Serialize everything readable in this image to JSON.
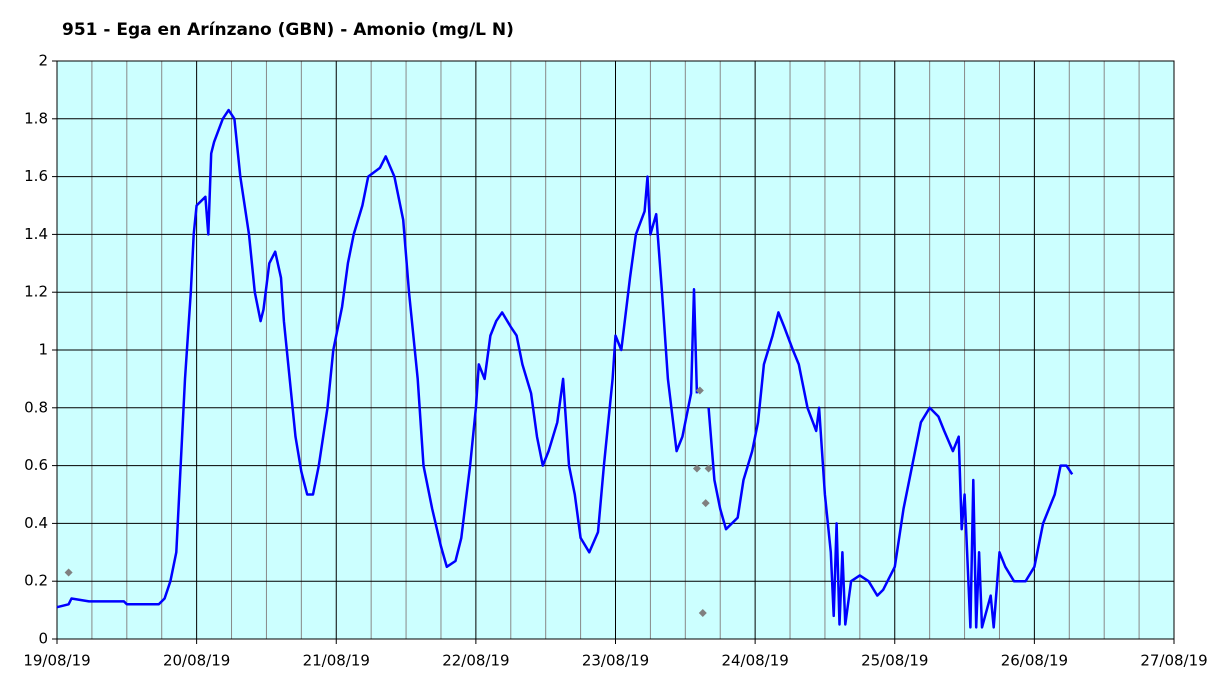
{
  "chart_data": {
    "type": "line",
    "title": "951 - Ega en Arínzano (GBN) - Amonio (mg/L N)",
    "xlim": [
      "2019-08-19 00:00",
      "2019-08-27 00:00"
    ],
    "xticks": [
      {
        "value": "2019-08-19 00:00",
        "label": "19/08/19"
      },
      {
        "value": "2019-08-20 00:00",
        "label": "20/08/19"
      },
      {
        "value": "2019-08-21 00:00",
        "label": "21/08/19"
      },
      {
        "value": "2019-08-22 00:00",
        "label": "22/08/19"
      },
      {
        "value": "2019-08-23 00:00",
        "label": "23/08/19"
      },
      {
        "value": "2019-08-24 00:00",
        "label": "24/08/19"
      },
      {
        "value": "2019-08-25 00:00",
        "label": "25/08/19"
      },
      {
        "value": "2019-08-26 00:00",
        "label": "26/08/19"
      },
      {
        "value": "2019-08-27 00:00",
        "label": "27/08/19"
      }
    ],
    "xminor": 4,
    "ylim": [
      0,
      2
    ],
    "yticks": [
      0,
      0.2,
      0.4,
      0.6,
      0.8,
      1,
      1.2,
      1.4,
      1.6,
      1.8,
      2
    ],
    "grid": true,
    "background": "#ccffff",
    "series": [
      {
        "mode": "line",
        "color": "#0000ff",
        "x": [
          "2019-08-19 00:00",
          "2019-08-19 02:00",
          "2019-08-19 02:30",
          "2019-08-19 05:30",
          "2019-08-19 11:30",
          "2019-08-19 12:00",
          "2019-08-19 17:30",
          "2019-08-19 18:30",
          "2019-08-19 19:30",
          "2019-08-19 20:30",
          "2019-08-19 21:00",
          "2019-08-19 22:00",
          "2019-08-19 23:00",
          "2019-08-19 23:30",
          "2019-08-20 00:00",
          "2019-08-20 01:30",
          "2019-08-20 02:00",
          "2019-08-20 02:30",
          "2019-08-20 03:00",
          "2019-08-20 04:30",
          "2019-08-20 05:30",
          "2019-08-20 06:30",
          "2019-08-20 07:30",
          "2019-08-20 09:00",
          "2019-08-20 10:00",
          "2019-08-20 11:00",
          "2019-08-20 11:30",
          "2019-08-20 12:30",
          "2019-08-20 13:30",
          "2019-08-20 14:30",
          "2019-08-20 15:00",
          "2019-08-20 16:00",
          "2019-08-20 17:00",
          "2019-08-20 18:00",
          "2019-08-20 19:00",
          "2019-08-20 20:00",
          "2019-08-20 21:00",
          "2019-08-20 22:30",
          "2019-08-20 23:30",
          "2019-08-21 01:00",
          "2019-08-21 02:00",
          "2019-08-21 03:00",
          "2019-08-21 04:30",
          "2019-08-21 05:30",
          "2019-08-21 07:30",
          "2019-08-21 08:30",
          "2019-08-21 10:00",
          "2019-08-21 11:30",
          "2019-08-21 12:30",
          "2019-08-21 14:00",
          "2019-08-21 15:00",
          "2019-08-21 16:30",
          "2019-08-21 18:00",
          "2019-08-21 19:00",
          "2019-08-21 20:30",
          "2019-08-21 21:30",
          "2019-08-21 23:00",
          "2019-08-22 00:00",
          "2019-08-22 00:30",
          "2019-08-22 01:30",
          "2019-08-22 02:30",
          "2019-08-22 03:30",
          "2019-08-22 04:30",
          "2019-08-22 06:00",
          "2019-08-22 07:00",
          "2019-08-22 08:00",
          "2019-08-22 09:30",
          "2019-08-22 10:30",
          "2019-08-22 11:30",
          "2019-08-22 12:30",
          "2019-08-22 14:00",
          "2019-08-22 15:00",
          "2019-08-22 16:00",
          "2019-08-22 17:00",
          "2019-08-22 18:00",
          "2019-08-22 19:30",
          "2019-08-22 21:00",
          "2019-08-22 22:00",
          "2019-08-22 23:30",
          "2019-08-23 00:00",
          "2019-08-23 01:00",
          "2019-08-23 02:30",
          "2019-08-23 03:30",
          "2019-08-23 05:00",
          "2019-08-23 05:30",
          "2019-08-23 06:00",
          "2019-08-23 07:00",
          "2019-08-23 08:00",
          "2019-08-23 09:00",
          "2019-08-23 10:30",
          "2019-08-23 11:30",
          "2019-08-23 12:30",
          "2019-08-23 13:00",
          "2019-08-23 13:30",
          "2019-08-23 14:00",
          "2019-08-23 15:00",
          "2019-08-23 16:00",
          "2019-08-23 17:00",
          "2019-08-23 18:00",
          "2019-08-23 19:00",
          "2019-08-23 20:00",
          "2019-08-23 21:00",
          "2019-08-23 22:00",
          "2019-08-23 23:30",
          "2019-08-24 00:30",
          "2019-08-24 01:30",
          "2019-08-24 03:00",
          "2019-08-24 04:00",
          "2019-08-24 05:00",
          "2019-08-24 06:30",
          "2019-08-24 07:30",
          "2019-08-24 09:00",
          "2019-08-24 10:30",
          "2019-08-24 11:00",
          "2019-08-24 12:00",
          "2019-08-24 13:00",
          "2019-08-24 13:30",
          "2019-08-24 14:00",
          "2019-08-24 14:30",
          "2019-08-24 15:00",
          "2019-08-24 15:30",
          "2019-08-24 16:30",
          "2019-08-24 18:00",
          "2019-08-24 19:30",
          "2019-08-24 21:00",
          "2019-08-24 22:00",
          "2019-08-25 00:00",
          "2019-08-25 01:30",
          "2019-08-25 03:30",
          "2019-08-25 04:30",
          "2019-08-25 06:00",
          "2019-08-25 07:30",
          "2019-08-25 08:30",
          "2019-08-25 10:00",
          "2019-08-25 11:00",
          "2019-08-25 11:30",
          "2019-08-25 12:00",
          "2019-08-25 13:00",
          "2019-08-25 13:30",
          "2019-08-25 14:00",
          "2019-08-25 14:30",
          "2019-08-25 15:00",
          "2019-08-25 16:30",
          "2019-08-25 17:00",
          "2019-08-25 18:00",
          "2019-08-25 19:00",
          "2019-08-25 20:30",
          "2019-08-25 22:30",
          "2019-08-26 00:00",
          "2019-08-26 01:30",
          "2019-08-26 03:30",
          "2019-08-26 04:30",
          "2019-08-26 05:30",
          "2019-08-26 06:30"
        ],
        "values": [
          0.11,
          0.12,
          0.14,
          0.13,
          0.13,
          0.12,
          0.12,
          0.14,
          0.2,
          0.3,
          0.5,
          0.9,
          1.2,
          1.4,
          1.5,
          1.53,
          1.4,
          1.68,
          1.72,
          1.8,
          1.83,
          1.8,
          1.6,
          1.4,
          1.2,
          1.1,
          1.14,
          1.3,
          1.34,
          1.25,
          1.1,
          0.9,
          0.7,
          0.58,
          0.5,
          0.5,
          0.6,
          0.8,
          1.0,
          1.15,
          1.3,
          1.4,
          1.5,
          1.6,
          1.63,
          1.67,
          1.6,
          1.45,
          1.2,
          0.9,
          0.6,
          0.45,
          0.32,
          0.25,
          0.27,
          0.35,
          0.6,
          0.8,
          0.95,
          0.9,
          1.05,
          1.1,
          1.13,
          1.08,
          1.05,
          0.95,
          0.85,
          0.7,
          0.6,
          0.65,
          0.75,
          0.9,
          0.6,
          0.5,
          0.35,
          0.3,
          0.37,
          0.6,
          0.9,
          1.05,
          1.0,
          1.25,
          1.4,
          1.48,
          1.6,
          1.4,
          1.47,
          1.2,
          0.9,
          0.65,
          0.7,
          0.8,
          0.85,
          1.21,
          0.85,
          null,
          0.8,
          0.55,
          0.45,
          0.38,
          0.4,
          0.42,
          0.55,
          0.65,
          0.75,
          0.95,
          1.05,
          1.13,
          1.08,
          1.0,
          0.95,
          0.8,
          0.72,
          0.8,
          0.5,
          0.3,
          0.08,
          0.4,
          0.05,
          0.3,
          0.05,
          0.2,
          0.22,
          0.2,
          0.15,
          0.17,
          0.25,
          0.45,
          0.65,
          0.75,
          0.8,
          0.77,
          0.72,
          0.65,
          0.7,
          0.38,
          0.5,
          0.04,
          0.55,
          0.04,
          0.3,
          0.04,
          0.15,
          0.04,
          0.3,
          0.25,
          0.2,
          0.2,
          0.25,
          0.4,
          0.5,
          0.6,
          0.6,
          0.57
        ]
      },
      {
        "mode": "markers",
        "color": "#808080",
        "x": [
          "2019-08-19 02:00",
          "2019-08-23 14:00",
          "2019-08-23 14:30",
          "2019-08-23 15:00",
          "2019-08-23 15:30",
          "2019-08-23 16:00"
        ],
        "values": [
          0.23,
          0.59,
          0.86,
          0.09,
          0.47,
          0.59
        ]
      }
    ]
  }
}
